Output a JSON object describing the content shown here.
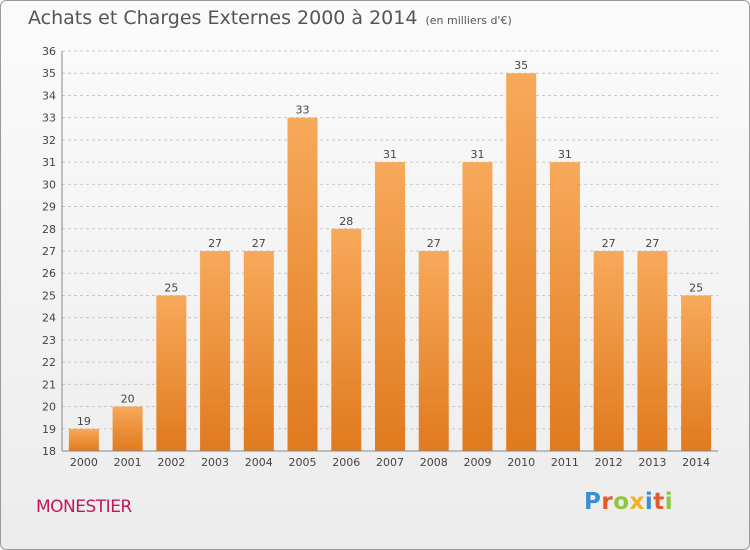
{
  "header": {
    "title": "Achats et Charges Externes 2000 à 2014",
    "subtitle": "(en milliers d'€)"
  },
  "footer": {
    "commune": "MONESTIER",
    "logo_text": "Proxiti",
    "logo_colors": [
      "#3a8fd1",
      "#e65a2a",
      "#8dc63f",
      "#f3b21b",
      "#3a8fd1",
      "#e65a2a",
      "#8dc63f"
    ]
  },
  "colors": {
    "bar_top": "#f7a95a",
    "bar_bottom": "#e07a1e",
    "grid": "#c8c8c8"
  },
  "chart_data": {
    "type": "bar",
    "title": "Achats et Charges Externes 2000 à 2014",
    "subtitle": "(en milliers d'€)",
    "categories": [
      "2000",
      "2001",
      "2002",
      "2003",
      "2004",
      "2005",
      "2006",
      "2007",
      "2008",
      "2009",
      "2010",
      "2011",
      "2012",
      "2013",
      "2014"
    ],
    "values": [
      19,
      20,
      25,
      27,
      27,
      33,
      28,
      31,
      27,
      31,
      35,
      31,
      27,
      27,
      25
    ],
    "ylim": [
      18,
      36
    ],
    "yticks": [
      18,
      19,
      20,
      21,
      22,
      23,
      24,
      25,
      26,
      27,
      28,
      29,
      30,
      31,
      32,
      33,
      34,
      35,
      36
    ],
    "grid": true,
    "data_labels": true
  }
}
